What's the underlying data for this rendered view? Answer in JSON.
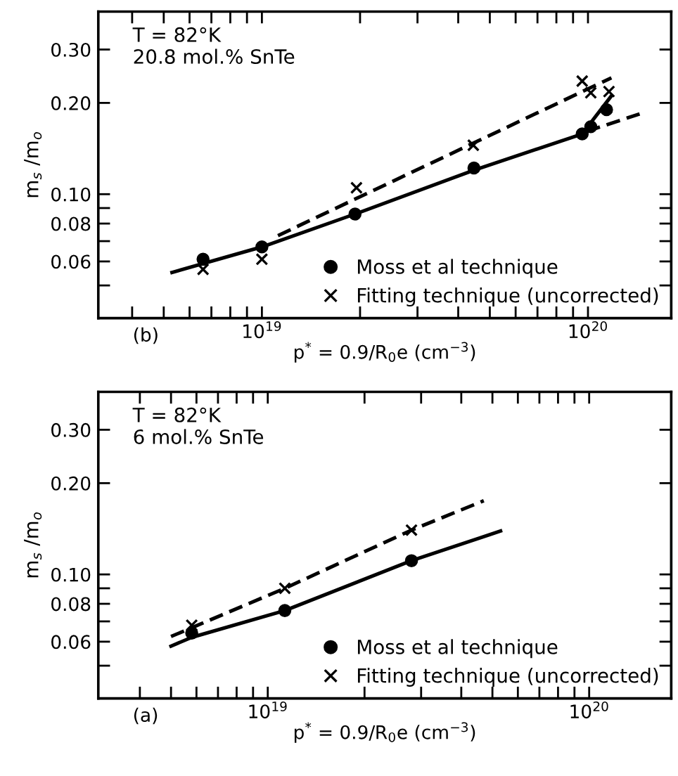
{
  "chart_data": [
    {
      "type": "scatter",
      "xlabel": "p$^{*}$ = 0.9/R$_{0}$e (cm$^{−3}$)",
      "ylabel": "m$_{s}$ /m$_{o}$",
      "log": "xy",
      "xlim": [
        3.15e+18,
        1.8e+20
      ],
      "ylim": [
        0.039,
        0.4
      ],
      "xticks": [
        {
          "value": 4e+18,
          "label": null
        },
        {
          "value": 5e+18,
          "label": null
        },
        {
          "value": 6e+18,
          "label": null
        },
        {
          "value": 7e+18,
          "label": null
        },
        {
          "value": 8e+18,
          "label": null
        },
        {
          "value": 9e+18,
          "label": null
        },
        {
          "value": 1e+19,
          "label": "10$^{19}$"
        },
        {
          "value": 2e+19,
          "label": null
        },
        {
          "value": 3e+19,
          "label": null
        },
        {
          "value": 4e+19,
          "label": null
        },
        {
          "value": 5e+19,
          "label": null
        },
        {
          "value": 6e+19,
          "label": null
        },
        {
          "value": 7e+19,
          "label": null
        },
        {
          "value": 8e+19,
          "label": null
        },
        {
          "value": 9e+19,
          "label": null
        },
        {
          "value": 1e+20,
          "label": "10$^{20}$"
        }
      ],
      "yticks": [
        {
          "value": 0.05,
          "label": null
        },
        {
          "value": 0.06,
          "label": "0.06"
        },
        {
          "value": 0.07,
          "label": null
        },
        {
          "value": 0.08,
          "label": "0.08"
        },
        {
          "value": 0.09,
          "label": null
        },
        {
          "value": 0.1,
          "label": "0.10"
        },
        {
          "value": 0.2,
          "label": "0.20"
        },
        {
          "value": 0.3,
          "label": "0.30"
        }
      ],
      "grid": false,
      "legend": "lower right",
      "annotations": [
        "T = 82°K\n20.8 mol.% SnTe",
        "(b)"
      ],
      "series": [
        {
          "name": "Moss et al technique",
          "marker": "circle",
          "color": "#000000",
          "x": [
            6.6e+18,
            1e+19,
            1.93e+19,
            4.47e+19,
            9.6e+19,
            1.02e+20,
            1.14e+20
          ],
          "values": [
            0.061,
            0.067,
            0.086,
            0.122,
            0.158,
            0.167,
            0.19
          ]
        },
        {
          "name": "Fitting technique (uncorrected)",
          "marker": "cross",
          "color": "#000000",
          "x": [
            6.6e+18,
            1e+19,
            1.95e+19,
            4.45e+19,
            9.6e+19,
            1.02e+20,
            1.16e+20
          ],
          "values": [
            0.0565,
            0.061,
            0.105,
            0.145,
            0.236,
            0.216,
            0.218
          ]
        },
        {
          "type": "line",
          "line_style": "solid",
          "color": "#000000",
          "x": [
            5.3e+18,
            1e+19,
            1.93e+19,
            4.47e+19,
            9.6e+19,
            1.18e+20
          ],
          "values": [
            0.0552,
            0.067,
            0.086,
            0.12,
            0.158,
            0.211
          ]
        },
        {
          "type": "line",
          "line_style": "dashed",
          "color": "#000000",
          "x": [
            1.12e+19,
            1.18e+20
          ],
          "values": [
            0.073,
            0.242
          ]
        },
        {
          "type": "line",
          "line_style": "dashed",
          "color": "#000000",
          "x": [
            9.9e+19,
            1.44e+20
          ],
          "values": [
            0.161,
            0.184
          ]
        }
      ]
    },
    {
      "type": "scatter",
      "xlabel": "p$^{*}$ = 0.9/R$_{0}$e (cm$^{−3}$)",
      "ylabel": "m$_{s}$ /m$_{o}$",
      "log": "xy",
      "xlim": [
        2.97e+18,
        1.8e+20
      ],
      "ylim": [
        0.039,
        0.4
      ],
      "xticks": [
        {
          "value": 4e+18,
          "label": null
        },
        {
          "value": 5e+18,
          "label": null
        },
        {
          "value": 6e+18,
          "label": null
        },
        {
          "value": 7e+18,
          "label": null
        },
        {
          "value": 8e+18,
          "label": null
        },
        {
          "value": 9e+18,
          "label": null
        },
        {
          "value": 1e+19,
          "label": "10$^{19}$"
        },
        {
          "value": 2e+19,
          "label": null
        },
        {
          "value": 3e+19,
          "label": null
        },
        {
          "value": 4e+19,
          "label": null
        },
        {
          "value": 5e+19,
          "label": null
        },
        {
          "value": 6e+19,
          "label": null
        },
        {
          "value": 7e+19,
          "label": null
        },
        {
          "value": 8e+19,
          "label": null
        },
        {
          "value": 9e+19,
          "label": null
        },
        {
          "value": 1e+20,
          "label": "10$^{20}$"
        }
      ],
      "yticks": [
        {
          "value": 0.05,
          "label": null
        },
        {
          "value": 0.06,
          "label": "0.06"
        },
        {
          "value": 0.07,
          "label": null
        },
        {
          "value": 0.08,
          "label": "0.08"
        },
        {
          "value": 0.09,
          "label": null
        },
        {
          "value": 0.1,
          "label": "0.10"
        },
        {
          "value": 0.2,
          "label": "0.20"
        },
        {
          "value": 0.3,
          "label": "0.30"
        }
      ],
      "grid": false,
      "legend": "lower right",
      "annotations": [
        "T = 82°K\n6 mol.% SnTe",
        "(a)"
      ],
      "series": [
        {
          "name": "Moss et al technique",
          "marker": "circle",
          "color": "#000000",
          "x": [
            5.8e+18,
            1.13e+19,
            2.8e+19
          ],
          "values": [
            0.064,
            0.076,
            0.111
          ]
        },
        {
          "name": "Fitting technique (uncorrected)",
          "marker": "cross",
          "color": "#000000",
          "x": [
            5.8e+18,
            1.13e+19,
            2.8e+19
          ],
          "values": [
            0.068,
            0.09,
            0.14
          ]
        },
        {
          "type": "line",
          "line_style": "solid",
          "color": "#000000",
          "x": [
            5e+18,
            5.8e+18,
            1.13e+19,
            2.8e+19,
            5.3e+19
          ],
          "values": [
            0.058,
            0.062,
            0.076,
            0.111,
            0.139
          ]
        },
        {
          "type": "line",
          "line_style": "dashed",
          "color": "#000000",
          "x": [
            5e+18,
            1.13e+19,
            2.8e+19,
            4.7e+19
          ],
          "values": [
            0.0624,
            0.09,
            0.14,
            0.175
          ]
        }
      ]
    }
  ]
}
